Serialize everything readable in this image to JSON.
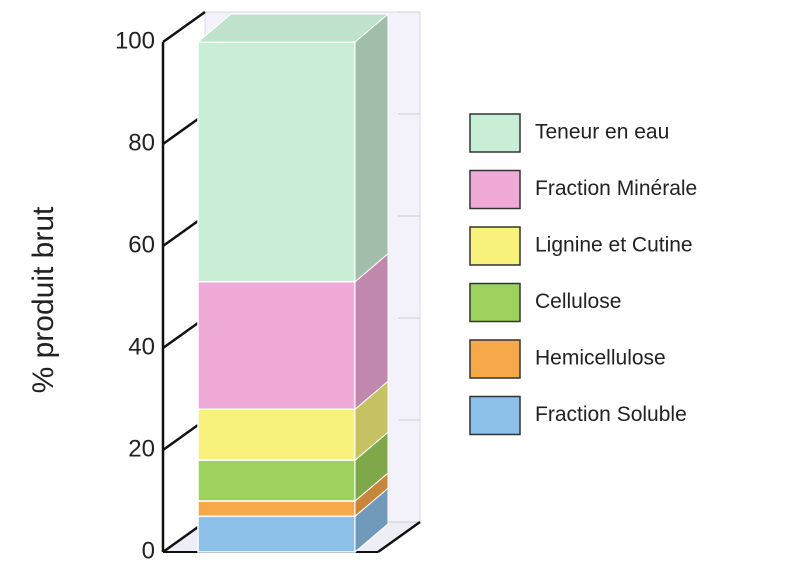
{
  "chart_data": {
    "type": "bar3d_stacked",
    "y_label": "% produit brut",
    "categories": [
      null
    ],
    "series": [
      {
        "name": "Fraction Soluble",
        "color": "#8dc0e8",
        "values": [
          7
        ]
      },
      {
        "name": "Hemicellulose",
        "color": "#f7a94a",
        "values": [
          3
        ]
      },
      {
        "name": "Cellulose",
        "color": "#9dd25c",
        "values": [
          8
        ]
      },
      {
        "name": "Lignine et Cutine",
        "color": "#f8f27c",
        "values": [
          10
        ]
      },
      {
        "name": "Fraction Minérale",
        "color": "#f0aad8",
        "values": [
          25
        ]
      },
      {
        "name": "Teneur en eau",
        "color": "#c8eed5",
        "values": [
          47
        ]
      }
    ],
    "ylim": [
      0,
      100
    ],
    "yticks": [
      0,
      20,
      40,
      60,
      80,
      100
    ],
    "legend": "right"
  }
}
